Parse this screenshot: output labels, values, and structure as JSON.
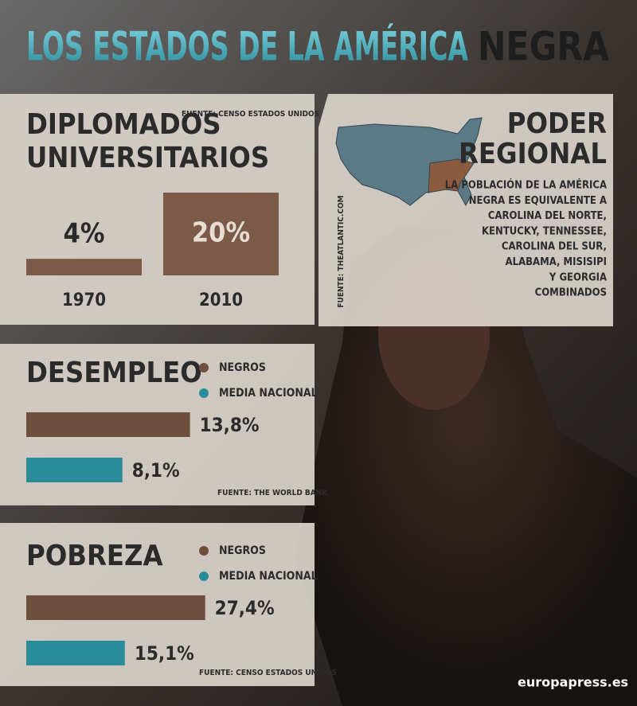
{
  "title": {
    "main": "LOS ESTADOS DE LA AMÉRICA",
    "accent": "NEGRA"
  },
  "chart_data": [
    {
      "type": "vbar",
      "title_lines": [
        "DIPLOMADOS",
        "UNIVERSITARIOS"
      ],
      "source": "FUENTE: CENSO ESTADOS UNIDOS",
      "categories": [
        "1970",
        "2010"
      ],
      "values": [
        4,
        20
      ],
      "value_labels": [
        "4%",
        "20%"
      ],
      "color": "#7b5a47"
    },
    {
      "type": "hbar",
      "title_lines": [
        "DESEMPLEO"
      ],
      "source": "FUENTE: THE WORLD BANK",
      "series": [
        {
          "name": "NEGROS",
          "color": "#6e4f3e",
          "values": [
            13.8
          ],
          "value_labels": [
            "13,8%"
          ]
        },
        {
          "name": "MEDIA NACIONAL",
          "color": "#2a8c9b",
          "values": [
            8.1
          ],
          "value_labels": [
            "8,1%"
          ]
        }
      ]
    },
    {
      "type": "hbar",
      "title_lines": [
        "POBREZA"
      ],
      "source": "FUENTE: CENSO ESTADOS UNIDOS",
      "series": [
        {
          "name": "NEGROS",
          "color": "#6e4f3e",
          "values": [
            27.4
          ],
          "value_labels": [
            "27,4%"
          ]
        },
        {
          "name": "MEDIA NACIONAL",
          "color": "#2a8c9b",
          "values": [
            15.1
          ],
          "value_labels": [
            "15,1%"
          ]
        }
      ]
    }
  ],
  "regional": {
    "title_lines": [
      "PODER",
      "REGIONAL"
    ],
    "text_lines": [
      "LA POBLACIÓN DE LA AMÉRICA",
      "NEGRA ES EQUIVALENTE A",
      "CAROLINA DEL NORTE,",
      "KENTUCKY, TENNESSEE,",
      "CAROLINA DEL SUR,",
      "ALABAMA, MISISIPI",
      "Y GEORGIA",
      "COMBINADOS"
    ],
    "source": "FUENTE: THEATLANTIC.COM"
  },
  "brand": "europapress.es"
}
